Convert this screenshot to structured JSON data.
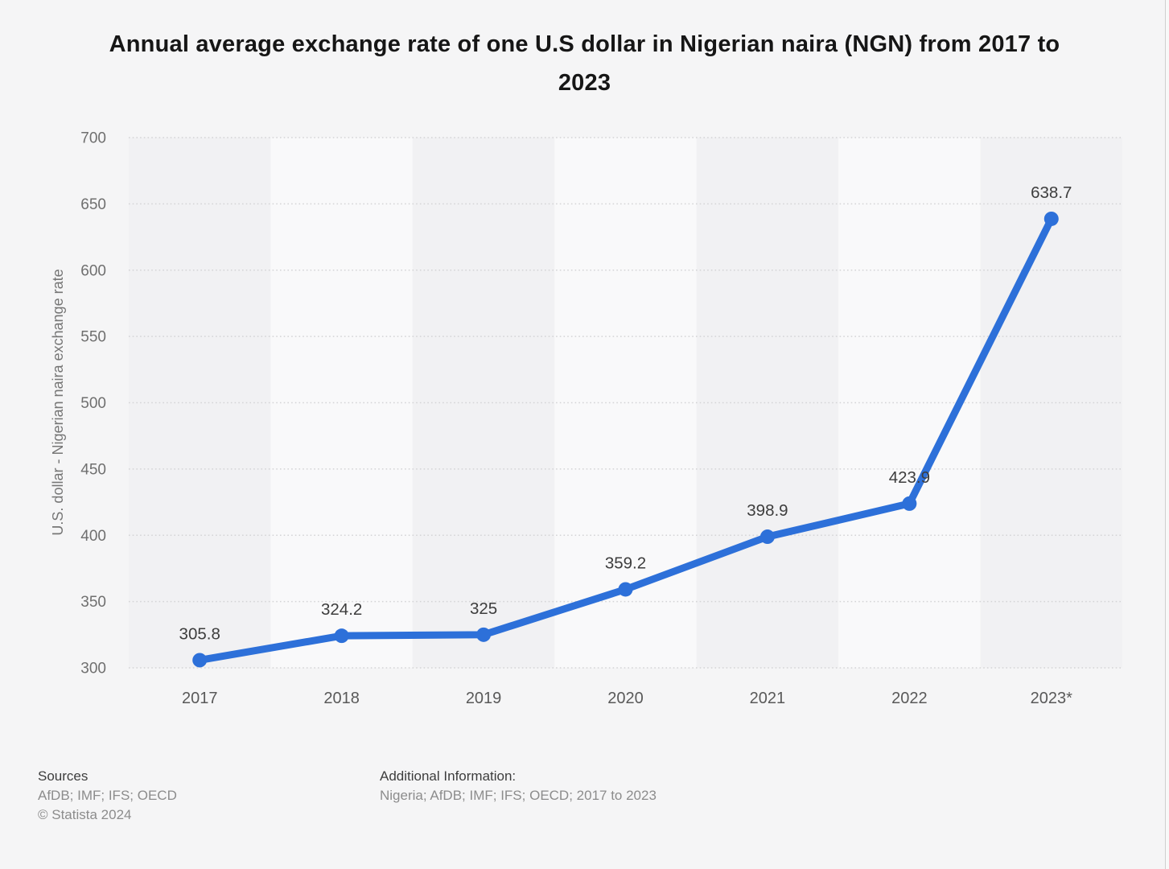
{
  "header": {
    "title": "Annual average exchange rate of one U.S dollar in Nigerian naira (NGN) from 2017 to 2023"
  },
  "chart_data": {
    "type": "line",
    "title": "Annual average exchange rate of one U.S dollar in Nigerian naira (NGN) from 2017 to 2023",
    "categories": [
      "2017",
      "2018",
      "2019",
      "2020",
      "2021",
      "2022",
      "2023*"
    ],
    "values": [
      305.8,
      324.2,
      325,
      359.2,
      398.9,
      423.9,
      638.7
    ],
    "value_labels": [
      "305.8",
      "324.2",
      "325",
      "359.2",
      "398.9",
      "423.9",
      "638.7"
    ],
    "xlabel": "",
    "ylabel": "U.S. dollar - Nigerian naira exchange rate",
    "ylim": [
      300,
      700
    ],
    "ytick_step": 50,
    "ytick_labels": [
      "300",
      "350",
      "400",
      "450",
      "500",
      "550",
      "600",
      "650",
      "700"
    ],
    "grid": true,
    "gridline_style": "dotted",
    "legend": false,
    "colors": {
      "line": "#2D70D9",
      "marker": "#2D70D9",
      "band_dark": "#f1f1f3",
      "band_light": "#f9f9fa",
      "gridline": "#d4d4d6",
      "page_background": "#f5f5f6",
      "data_label": "#3d3d3d",
      "y_tick_label": "#6f6f6f",
      "x_tick_label": "#595959",
      "axis_title": "#767676"
    }
  },
  "footer": {
    "sources_label": "Sources",
    "sources_value": "AfDB; IMF; IFS; OECD",
    "copyright": "© Statista 2024",
    "additional_info_label": "Additional Information:",
    "additional_info_value": "Nigeria; AfDB; IMF; IFS; OECD; 2017 to 2023"
  }
}
